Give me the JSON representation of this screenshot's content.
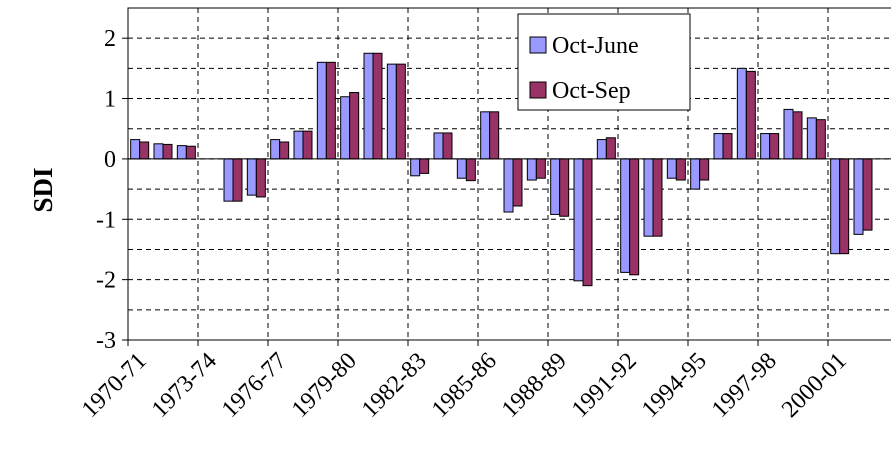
{
  "chart_data": {
    "type": "bar",
    "y_label": "SDI",
    "categories": [
      "1970-71",
      null,
      null,
      "1973-74",
      null,
      null,
      "1976-77",
      null,
      null,
      "1979-80",
      null,
      null,
      "1982-83",
      null,
      null,
      "1985-86",
      null,
      null,
      "1988-89",
      null,
      null,
      "1991-92",
      null,
      null,
      "1994-95",
      null,
      null,
      "1997-98",
      null,
      null,
      "2000-01",
      null
    ],
    "series": [
      {
        "name": "Oct-June",
        "color": "#9999ff",
        "values": [
          0.32,
          0.25,
          0.22,
          null,
          -0.7,
          -0.6,
          0.32,
          0.46,
          1.6,
          1.03,
          1.75,
          1.57,
          -0.28,
          0.43,
          -0.32,
          0.78,
          -0.88,
          -0.35,
          -0.92,
          -2.02,
          0.32,
          -1.88,
          -1.28,
          -0.32,
          -0.5,
          0.42,
          1.5,
          0.42,
          0.82,
          0.68,
          -1.57,
          -1.25
        ]
      },
      {
        "name": "Oct-Sep",
        "color": "#993366",
        "values": [
          0.28,
          0.24,
          0.21,
          null,
          -0.7,
          -0.63,
          0.28,
          0.46,
          1.6,
          1.1,
          1.75,
          1.57,
          -0.24,
          0.43,
          -0.36,
          0.78,
          -0.78,
          -0.32,
          -0.95,
          -2.1,
          0.35,
          -1.92,
          -1.28,
          -0.35,
          -0.35,
          0.42,
          1.45,
          0.42,
          0.78,
          0.65,
          -1.57,
          -1.18
        ]
      }
    ],
    "ylim": [
      -3,
      2.5
    ],
    "yticks": [
      -3,
      -2,
      -1,
      0,
      1,
      2
    ],
    "minor_yticks": [
      -2.5,
      -1.5,
      -0.5,
      0.5,
      1.5,
      2.5
    ],
    "grid": true,
    "legend": "top-right"
  }
}
